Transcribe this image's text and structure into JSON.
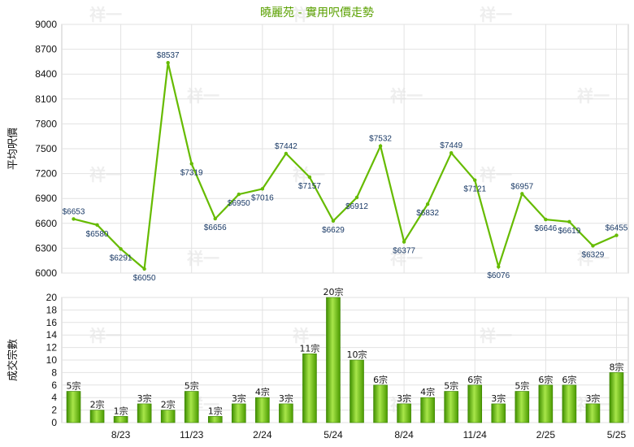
{
  "chart_data": [
    {
      "type": "line",
      "title": "曉麗苑 - 實用呎價走勢",
      "ylabel": "平均呎價",
      "ylim": [
        6000,
        9000
      ],
      "yticks": [
        6000,
        6300,
        6600,
        6900,
        7200,
        7500,
        7800,
        8100,
        8400,
        8700,
        9000
      ],
      "color": "#66bb00",
      "grid": true,
      "values": [
        6653,
        6580,
        6291,
        6050,
        8537,
        7319,
        6656,
        6950,
        7016,
        7442,
        7157,
        6629,
        6912,
        7532,
        6377,
        6832,
        7449,
        7121,
        6076,
        6957,
        6646,
        6619,
        6329,
        6455
      ],
      "labels": [
        "$6653",
        "$6580",
        "$6291",
        "$6050",
        "$8537",
        "$7319",
        "$6656",
        "$6950",
        "$7016",
        "$7442",
        "$7157",
        "$6629",
        "$6912",
        "$7532",
        "$6377",
        "$6832",
        "$7449",
        "$7121",
        "$6076",
        "$6957",
        "$6646",
        "$6619",
        "$6329",
        "$6455"
      ]
    },
    {
      "type": "bar",
      "ylabel": "成交宗數",
      "ylim": [
        0,
        20
      ],
      "yticks": [
        0,
        2,
        4,
        6,
        8,
        10,
        12,
        14,
        16,
        18,
        20
      ],
      "color": "#66bb00",
      "grid": true,
      "values": [
        5,
        2,
        1,
        3,
        2,
        5,
        1,
        3,
        4,
        3,
        11,
        20,
        10,
        6,
        3,
        4,
        5,
        6,
        3,
        5,
        6,
        6,
        3,
        8
      ],
      "labels": [
        "5宗",
        "2宗",
        "1宗",
        "3宗",
        "2宗",
        "5宗",
        "1宗",
        "3宗",
        "4宗",
        "3宗",
        "11宗",
        "20宗",
        "10宗",
        "6宗",
        "3宗",
        "4宗",
        "5宗",
        "6宗",
        "3宗",
        "5宗",
        "6宗",
        "6宗",
        "3宗",
        "8宗"
      ],
      "xtick_labels": [
        "8/23",
        "11/23",
        "2/24",
        "5/24",
        "8/24",
        "11/24",
        "2/25",
        "5/25"
      ]
    }
  ],
  "watermark": "祥一"
}
